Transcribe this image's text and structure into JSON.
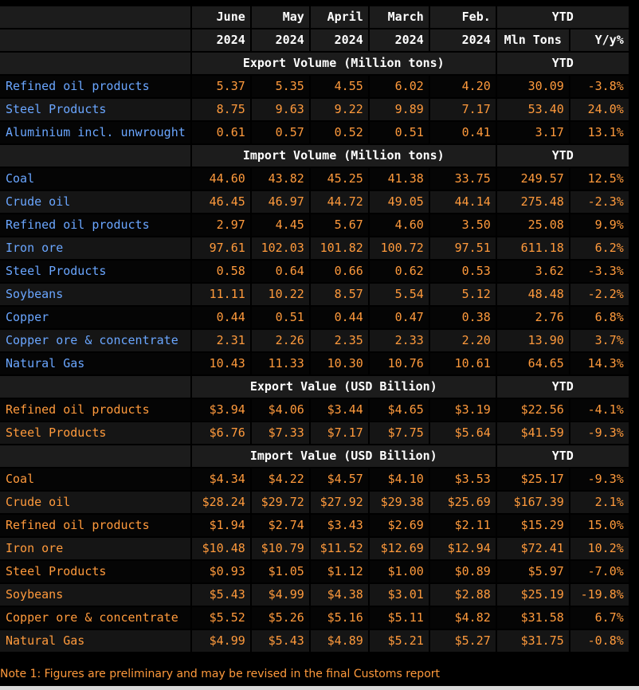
{
  "header": {
    "months": [
      {
        "month": "June",
        "year": "2024"
      },
      {
        "month": "May",
        "year": "2024"
      },
      {
        "month": "April",
        "year": "2024"
      },
      {
        "month": "March",
        "year": "2024"
      },
      {
        "month": "Feb.",
        "year": "2024"
      }
    ],
    "ytd_label": "YTD",
    "ytd_sub": [
      "Mln Tons",
      "Y/y%"
    ]
  },
  "chart_data": {
    "type": "table",
    "sections": [
      {
        "title": "Export Volume (Million tons)",
        "ytd_label": "YTD",
        "color": "#6aa6ff",
        "rows": [
          {
            "label": "Refined oil products",
            "values": [
              "5.37",
              "5.35",
              "4.55",
              "6.02",
              "4.20"
            ],
            "ytd": "30.09",
            "yoy": "-3.8%"
          },
          {
            "label": "Steel Products",
            "values": [
              "8.75",
              "9.63",
              "9.22",
              "9.89",
              "7.17"
            ],
            "ytd": "53.40",
            "yoy": "24.0%"
          },
          {
            "label": "Aluminium incl. unwrought",
            "values": [
              "0.61",
              "0.57",
              "0.52",
              "0.51",
              "0.41"
            ],
            "ytd": "3.17",
            "yoy": "13.1%"
          }
        ]
      },
      {
        "title": "Import Volume (Million tons)",
        "ytd_label": "YTD",
        "color": "#6aa6ff",
        "rows": [
          {
            "label": "Coal",
            "values": [
              "44.60",
              "43.82",
              "45.25",
              "41.38",
              "33.75"
            ],
            "ytd": "249.57",
            "yoy": "12.5%"
          },
          {
            "label": "Crude oil",
            "values": [
              "46.45",
              "46.97",
              "44.72",
              "49.05",
              "44.14"
            ],
            "ytd": "275.48",
            "yoy": "-2.3%"
          },
          {
            "label": "Refined oil products",
            "values": [
              "2.97",
              "4.45",
              "5.67",
              "4.60",
              "3.50"
            ],
            "ytd": "25.08",
            "yoy": "9.9%"
          },
          {
            "label": "Iron ore",
            "values": [
              "97.61",
              "102.03",
              "101.82",
              "100.72",
              "97.51"
            ],
            "ytd": "611.18",
            "yoy": "6.2%"
          },
          {
            "label": "Steel Products",
            "values": [
              "0.58",
              "0.64",
              "0.66",
              "0.62",
              "0.53"
            ],
            "ytd": "3.62",
            "yoy": "-3.3%"
          },
          {
            "label": "Soybeans",
            "values": [
              "11.11",
              "10.22",
              "8.57",
              "5.54",
              "5.12"
            ],
            "ytd": "48.48",
            "yoy": "-2.2%"
          },
          {
            "label": "Copper",
            "values": [
              "0.44",
              "0.51",
              "0.44",
              "0.47",
              "0.38"
            ],
            "ytd": "2.76",
            "yoy": "6.8%"
          },
          {
            "label": "Copper ore & concentrate",
            "values": [
              "2.31",
              "2.26",
              "2.35",
              "2.33",
              "2.20"
            ],
            "ytd": "13.90",
            "yoy": "3.7%"
          },
          {
            "label": "Natural Gas",
            "values": [
              "10.43",
              "11.33",
              "10.30",
              "10.76",
              "10.61"
            ],
            "ytd": "64.65",
            "yoy": "14.3%"
          }
        ]
      },
      {
        "title": "Export Value (USD Billion)",
        "ytd_label": "YTD",
        "color": "#ff9a3c",
        "rows": [
          {
            "label": "Refined oil products",
            "values": [
              "$3.94",
              "$4.06",
              "$3.44",
              "$4.65",
              "$3.19"
            ],
            "ytd": "$22.56",
            "yoy": "-4.1%"
          },
          {
            "label": "Steel Products",
            "values": [
              "$6.76",
              "$7.33",
              "$7.17",
              "$7.75",
              "$5.64"
            ],
            "ytd": "$41.59",
            "yoy": "-9.3%"
          }
        ]
      },
      {
        "title": "Import Value (USD Billion)",
        "ytd_label": "YTD",
        "color": "#ff9a3c",
        "rows": [
          {
            "label": "Coal",
            "values": [
              "$4.34",
              "$4.22",
              "$4.57",
              "$4.10",
              "$3.53"
            ],
            "ytd": "$25.17",
            "yoy": "-9.3%"
          },
          {
            "label": "Crude oil",
            "values": [
              "$28.24",
              "$29.72",
              "$27.92",
              "$29.38",
              "$25.69"
            ],
            "ytd": "$167.39",
            "yoy": "2.1%"
          },
          {
            "label": "Refined oil products",
            "values": [
              "$1.94",
              "$2.74",
              "$3.43",
              "$2.69",
              "$2.11"
            ],
            "ytd": "$15.29",
            "yoy": "15.0%"
          },
          {
            "label": "Iron ore",
            "values": [
              "$10.48",
              "$10.79",
              "$11.52",
              "$12.69",
              "$12.94"
            ],
            "ytd": "$72.41",
            "yoy": "10.2%"
          },
          {
            "label": "Steel Products",
            "values": [
              "$0.93",
              "$1.05",
              "$1.12",
              "$1.00",
              "$0.89"
            ],
            "ytd": "$5.97",
            "yoy": "-7.0%"
          },
          {
            "label": "Soybeans",
            "values": [
              "$5.43",
              "$4.99",
              "$4.38",
              "$3.01",
              "$2.88"
            ],
            "ytd": "$25.19",
            "yoy": "-19.8%"
          },
          {
            "label": "Copper ore & concentrate",
            "values": [
              "$5.52",
              "$5.26",
              "$5.16",
              "$5.11",
              "$4.82"
            ],
            "ytd": "$31.58",
            "yoy": "6.7%"
          },
          {
            "label": "Natural Gas",
            "values": [
              "$4.99",
              "$5.43",
              "$4.89",
              "$5.21",
              "$5.27"
            ],
            "ytd": "$31.75",
            "yoy": "-0.8%"
          }
        ]
      }
    ]
  },
  "note": "Note 1: Figures are preliminary and may be revised in the final Customs report"
}
